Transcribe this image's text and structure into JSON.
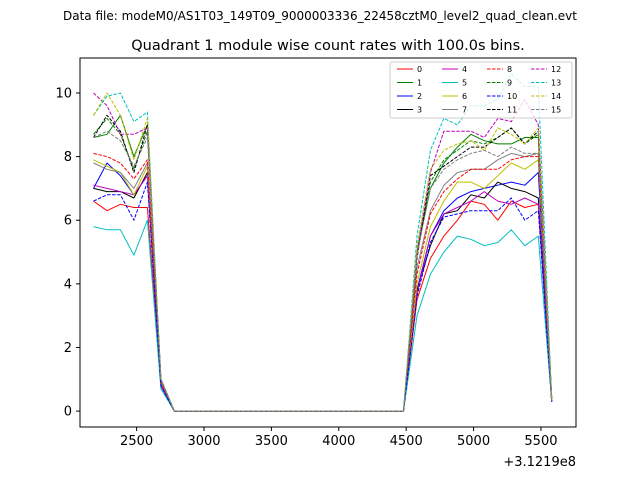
{
  "figure": {
    "suptitle": "Data file: modeM0/AS1T03_149T09_9000003336_22458cztM0_level2_quad_clean.evt",
    "offset_label": "+3.1219e8"
  },
  "chart_data": {
    "type": "line",
    "title": "Quadrant 1 module wise count rates with 100.0s bins.",
    "xlabel": "",
    "ylabel": "",
    "xlim": [
      2080,
      5760
    ],
    "ylim": [
      -0.5,
      11.1
    ],
    "xticks": [
      2500,
      3000,
      3500,
      4000,
      4500,
      5000,
      5500
    ],
    "yticks": [
      0,
      2,
      4,
      6,
      8,
      10
    ],
    "grid": false,
    "legend": {
      "placement": "top-right",
      "columns": 4
    },
    "x": [
      2180,
      2280,
      2380,
      2480,
      2580,
      2680,
      2780,
      2880,
      2980,
      3080,
      3180,
      3280,
      3380,
      3480,
      3580,
      3680,
      3780,
      3880,
      3980,
      4080,
      4180,
      4280,
      4380,
      4480,
      4580,
      4680,
      4780,
      4880,
      4980,
      5080,
      5180,
      5280,
      5380,
      5480,
      5580
    ],
    "series": [
      {
        "name": "0",
        "color": "#ff0000",
        "dash": "solid",
        "values": [
          6.6,
          6.3,
          6.5,
          6.4,
          6.4,
          0.8,
          0.0,
          0.0,
          0.0,
          0.0,
          0.0,
          0.0,
          0.0,
          0.0,
          0.0,
          0.0,
          0.0,
          0.0,
          0.0,
          0.0,
          0.0,
          0.0,
          0.0,
          0.0,
          3.5,
          4.8,
          5.5,
          6.0,
          6.6,
          6.5,
          6.0,
          6.6,
          6.4,
          6.5,
          0.3
        ]
      },
      {
        "name": "1",
        "color": "#008000",
        "dash": "solid",
        "values": [
          8.6,
          8.7,
          9.3,
          8.0,
          9.0,
          1.0,
          0.0,
          0.0,
          0.0,
          0.0,
          0.0,
          0.0,
          0.0,
          0.0,
          0.0,
          0.0,
          0.0,
          0.0,
          0.0,
          0.0,
          0.0,
          0.0,
          0.0,
          0.0,
          5.0,
          7.0,
          7.8,
          8.3,
          8.7,
          8.5,
          8.4,
          8.4,
          8.6,
          8.6,
          0.4
        ]
      },
      {
        "name": "2",
        "color": "#0000ff",
        "dash": "solid",
        "values": [
          7.0,
          7.8,
          7.4,
          6.8,
          7.4,
          0.8,
          0.0,
          0.0,
          0.0,
          0.0,
          0.0,
          0.0,
          0.0,
          0.0,
          0.0,
          0.0,
          0.0,
          0.0,
          0.0,
          0.0,
          0.0,
          0.0,
          0.0,
          0.0,
          3.8,
          5.5,
          6.3,
          6.7,
          6.9,
          7.0,
          7.1,
          7.2,
          7.1,
          7.5,
          0.3
        ]
      },
      {
        "name": "3",
        "color": "#000000",
        "dash": "solid",
        "values": [
          7.0,
          6.9,
          6.9,
          6.7,
          7.5,
          0.9,
          0.0,
          0.0,
          0.0,
          0.0,
          0.0,
          0.0,
          0.0,
          0.0,
          0.0,
          0.0,
          0.0,
          0.0,
          0.0,
          0.0,
          0.0,
          0.0,
          0.0,
          0.0,
          3.8,
          5.2,
          6.2,
          6.3,
          6.8,
          6.7,
          7.2,
          7.0,
          6.9,
          6.7,
          0.3
        ]
      },
      {
        "name": "4",
        "color": "#bf00bf",
        "dash": "solid",
        "values": [
          7.1,
          7.0,
          6.9,
          6.8,
          7.4,
          0.8,
          0.0,
          0.0,
          0.0,
          0.0,
          0.0,
          0.0,
          0.0,
          0.0,
          0.0,
          0.0,
          0.0,
          0.0,
          0.0,
          0.0,
          0.0,
          0.0,
          0.0,
          0.0,
          3.7,
          5.5,
          6.2,
          6.4,
          6.6,
          6.9,
          6.6,
          6.5,
          6.7,
          6.5,
          0.3
        ]
      },
      {
        "name": "5",
        "color": "#00bfbf",
        "dash": "solid",
        "values": [
          5.8,
          5.7,
          5.7,
          4.9,
          6.0,
          0.7,
          0.0,
          0.0,
          0.0,
          0.0,
          0.0,
          0.0,
          0.0,
          0.0,
          0.0,
          0.0,
          0.0,
          0.0,
          0.0,
          0.0,
          0.0,
          0.0,
          0.0,
          0.0,
          3.0,
          4.3,
          5.0,
          5.5,
          5.4,
          5.2,
          5.3,
          5.7,
          5.2,
          5.5,
          0.3
        ]
      },
      {
        "name": "6",
        "color": "#bfbf00",
        "dash": "solid",
        "values": [
          7.9,
          7.7,
          7.5,
          6.8,
          7.7,
          0.9,
          0.0,
          0.0,
          0.0,
          0.0,
          0.0,
          0.0,
          0.0,
          0.0,
          0.0,
          0.0,
          0.0,
          0.0,
          0.0,
          0.0,
          0.0,
          0.0,
          0.0,
          0.0,
          4.0,
          5.8,
          6.6,
          7.2,
          7.2,
          7.0,
          7.4,
          7.8,
          7.6,
          7.9,
          0.3
        ]
      },
      {
        "name": "7",
        "color": "#808080",
        "dash": "solid",
        "values": [
          7.8,
          7.6,
          7.5,
          7.0,
          7.8,
          0.9,
          0.0,
          0.0,
          0.0,
          0.0,
          0.0,
          0.0,
          0.0,
          0.0,
          0.0,
          0.0,
          0.0,
          0.0,
          0.0,
          0.0,
          0.0,
          0.0,
          0.0,
          0.0,
          4.5,
          6.3,
          7.1,
          7.5,
          7.6,
          7.6,
          7.9,
          8.1,
          8.0,
          8.1,
          0.4
        ]
      },
      {
        "name": "8",
        "color": "#ff0000",
        "dash": "dashed",
        "values": [
          8.1,
          8.0,
          7.8,
          7.3,
          7.9,
          0.9,
          0.0,
          0.0,
          0.0,
          0.0,
          0.0,
          0.0,
          0.0,
          0.0,
          0.0,
          0.0,
          0.0,
          0.0,
          0.0,
          0.0,
          0.0,
          0.0,
          0.0,
          0.0,
          4.3,
          6.2,
          6.9,
          7.3,
          7.6,
          7.6,
          7.6,
          7.9,
          8.0,
          8.0,
          0.3
        ]
      },
      {
        "name": "9",
        "color": "#008000",
        "dash": "dashed",
        "values": [
          8.7,
          9.2,
          8.7,
          7.6,
          8.8,
          1.0,
          0.0,
          0.0,
          0.0,
          0.0,
          0.0,
          0.0,
          0.0,
          0.0,
          0.0,
          0.0,
          0.0,
          0.0,
          0.0,
          0.0,
          0.0,
          0.0,
          0.0,
          0.0,
          5.0,
          7.2,
          7.9,
          8.2,
          8.5,
          8.4,
          8.6,
          8.9,
          8.4,
          8.7,
          0.4
        ]
      },
      {
        "name": "10",
        "color": "#0000ff",
        "dash": "dashed",
        "values": [
          6.6,
          6.8,
          6.8,
          6.0,
          7.2,
          0.8,
          0.0,
          0.0,
          0.0,
          0.0,
          0.0,
          0.0,
          0.0,
          0.0,
          0.0,
          0.0,
          0.0,
          0.0,
          0.0,
          0.0,
          0.0,
          0.0,
          0.0,
          0.0,
          3.6,
          5.3,
          6.1,
          6.2,
          6.3,
          6.3,
          6.3,
          6.7,
          6.0,
          6.3,
          0.3
        ]
      },
      {
        "name": "11",
        "color": "#000000",
        "dash": "dashed",
        "values": [
          8.6,
          9.3,
          8.8,
          7.5,
          9.0,
          1.0,
          0.0,
          0.0,
          0.0,
          0.0,
          0.0,
          0.0,
          0.0,
          0.0,
          0.0,
          0.0,
          0.0,
          0.0,
          0.0,
          0.0,
          0.0,
          0.0,
          0.0,
          0.0,
          4.8,
          7.4,
          7.7,
          8.0,
          8.3,
          8.3,
          8.6,
          8.9,
          8.4,
          8.8,
          0.4
        ]
      },
      {
        "name": "12",
        "color": "#bf00bf",
        "dash": "dashed",
        "values": [
          10.0,
          9.6,
          8.7,
          8.7,
          8.9,
          1.0,
          0.0,
          0.0,
          0.0,
          0.0,
          0.0,
          0.0,
          0.0,
          0.0,
          0.0,
          0.0,
          0.0,
          0.0,
          0.0,
          0.0,
          0.0,
          0.0,
          0.0,
          0.0,
          5.0,
          7.5,
          8.8,
          8.8,
          8.8,
          8.6,
          9.2,
          9.1,
          9.8,
          9.0,
          0.4
        ]
      },
      {
        "name": "13",
        "color": "#00bfbf",
        "dash": "dashed",
        "values": [
          9.3,
          9.9,
          10.0,
          9.1,
          9.4,
          1.0,
          0.0,
          0.0,
          0.0,
          0.0,
          0.0,
          0.0,
          0.0,
          0.0,
          0.0,
          0.0,
          0.0,
          0.0,
          0.0,
          0.0,
          0.0,
          0.0,
          0.0,
          0.0,
          5.5,
          8.2,
          9.2,
          9.0,
          9.6,
          9.6,
          9.8,
          10.6,
          10.2,
          10.2,
          0.4
        ]
      },
      {
        "name": "14",
        "color": "#bfbf00",
        "dash": "dashed",
        "values": [
          9.3,
          10.0,
          9.3,
          7.9,
          9.2,
          1.0,
          0.0,
          0.0,
          0.0,
          0.0,
          0.0,
          0.0,
          0.0,
          0.0,
          0.0,
          0.0,
          0.0,
          0.0,
          0.0,
          0.0,
          0.0,
          0.0,
          0.0,
          0.0,
          5.2,
          7.6,
          8.2,
          8.4,
          8.5,
          8.2,
          8.9,
          8.7,
          8.4,
          8.9,
          0.4
        ]
      },
      {
        "name": "15",
        "color": "#808080",
        "dash": "dashed",
        "values": [
          8.6,
          8.8,
          8.5,
          7.7,
          8.6,
          1.0,
          0.0,
          0.0,
          0.0,
          0.0,
          0.0,
          0.0,
          0.0,
          0.0,
          0.0,
          0.0,
          0.0,
          0.0,
          0.0,
          0.0,
          0.0,
          0.0,
          0.0,
          0.0,
          4.9,
          7.0,
          7.6,
          7.9,
          8.1,
          8.2,
          8.0,
          8.3,
          8.1,
          8.1,
          0.3
        ]
      }
    ]
  }
}
